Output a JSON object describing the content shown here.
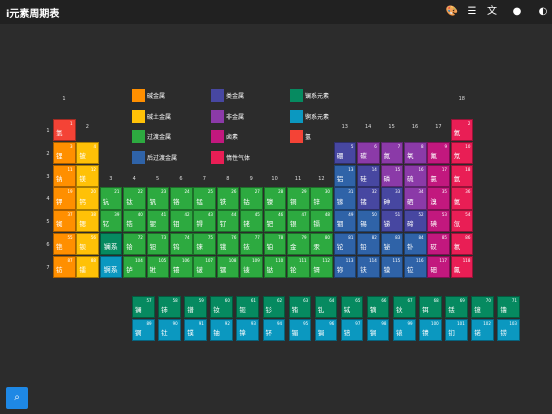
{
  "app": {
    "title": "i元素周期表"
  },
  "toolbar": [
    "palette-icon",
    "list-icon",
    "translate-icon",
    "drop-icon",
    "contrast-icon"
  ],
  "colors": {
    "alkali": "#ff8f00",
    "alkaline": "#ffc107",
    "transition": "#2daa40",
    "post": "#2f63a8",
    "metalloid": "#4747a1",
    "nonmetal": "#8b3aa8",
    "halogen": "#c2187e",
    "noble": "#e91e55",
    "lanth": "#068a60",
    "actin": "#0b98c0",
    "h": "#f44336"
  },
  "legend": [
    {
      "label": "碱金属",
      "cat": "alkali"
    },
    {
      "label": "碱土金属",
      "cat": "alkaline"
    },
    {
      "label": "过渡金属",
      "cat": "transition"
    },
    {
      "label": "后过渡金属",
      "cat": "post"
    },
    {
      "label": "类金属",
      "cat": "metalloid"
    },
    {
      "label": "非金属",
      "cat": "nonmetal"
    },
    {
      "label": "卤素",
      "cat": "halogen"
    },
    {
      "label": "惰性气体",
      "cat": "noble"
    },
    {
      "label": "镧系元素",
      "cat": "lanth"
    },
    {
      "label": "锕系元素",
      "cat": "actin"
    },
    {
      "label": "氢",
      "cat": "h"
    }
  ],
  "groups": [
    "1",
    "2",
    "3",
    "4",
    "5",
    "6",
    "7",
    "8",
    "9",
    "10",
    "11",
    "12",
    "13",
    "14",
    "15",
    "16",
    "17",
    "18"
  ],
  "periods": [
    "1",
    "2",
    "3",
    "4",
    "5",
    "6",
    "7"
  ],
  "elements": [
    {
      "n": 1,
      "s": "氢",
      "g": 1,
      "p": 1,
      "c": "h"
    },
    {
      "n": 2,
      "s": "氦",
      "g": 18,
      "p": 1,
      "c": "noble"
    },
    {
      "n": 3,
      "s": "锂",
      "g": 1,
      "p": 2,
      "c": "alkali"
    },
    {
      "n": 4,
      "s": "铍",
      "g": 2,
      "p": 2,
      "c": "alkaline"
    },
    {
      "n": 5,
      "s": "硼",
      "g": 13,
      "p": 2,
      "c": "metalloid"
    },
    {
      "n": 6,
      "s": "碳",
      "g": 14,
      "p": 2,
      "c": "nonmetal"
    },
    {
      "n": 7,
      "s": "氮",
      "g": 15,
      "p": 2,
      "c": "nonmetal"
    },
    {
      "n": 8,
      "s": "氧",
      "g": 16,
      "p": 2,
      "c": "nonmetal"
    },
    {
      "n": 9,
      "s": "氟",
      "g": 17,
      "p": 2,
      "c": "halogen"
    },
    {
      "n": 10,
      "s": "氖",
      "g": 18,
      "p": 2,
      "c": "noble"
    },
    {
      "n": 11,
      "s": "钠",
      "g": 1,
      "p": 3,
      "c": "alkali"
    },
    {
      "n": 12,
      "s": "镁",
      "g": 2,
      "p": 3,
      "c": "alkaline"
    },
    {
      "n": 13,
      "s": "铝",
      "g": 13,
      "p": 3,
      "c": "post"
    },
    {
      "n": 14,
      "s": "硅",
      "g": 14,
      "p": 3,
      "c": "metalloid"
    },
    {
      "n": 15,
      "s": "磷",
      "g": 15,
      "p": 3,
      "c": "nonmetal"
    },
    {
      "n": 16,
      "s": "硫",
      "g": 16,
      "p": 3,
      "c": "nonmetal"
    },
    {
      "n": 17,
      "s": "氯",
      "g": 17,
      "p": 3,
      "c": "halogen"
    },
    {
      "n": 18,
      "s": "氩",
      "g": 18,
      "p": 3,
      "c": "noble"
    },
    {
      "n": 19,
      "s": "钾",
      "g": 1,
      "p": 4,
      "c": "alkali"
    },
    {
      "n": 20,
      "s": "钙",
      "g": 2,
      "p": 4,
      "c": "alkaline"
    },
    {
      "n": 21,
      "s": "钪",
      "g": 3,
      "p": 4,
      "c": "transition"
    },
    {
      "n": 22,
      "s": "钛",
      "g": 4,
      "p": 4,
      "c": "transition"
    },
    {
      "n": 23,
      "s": "钒",
      "g": 5,
      "p": 4,
      "c": "transition"
    },
    {
      "n": 24,
      "s": "铬",
      "g": 6,
      "p": 4,
      "c": "transition"
    },
    {
      "n": 25,
      "s": "锰",
      "g": 7,
      "p": 4,
      "c": "transition"
    },
    {
      "n": 26,
      "s": "铁",
      "g": 8,
      "p": 4,
      "c": "transition"
    },
    {
      "n": 27,
      "s": "钴",
      "g": 9,
      "p": 4,
      "c": "transition"
    },
    {
      "n": 28,
      "s": "镍",
      "g": 10,
      "p": 4,
      "c": "transition"
    },
    {
      "n": 29,
      "s": "铜",
      "g": 11,
      "p": 4,
      "c": "transition"
    },
    {
      "n": 30,
      "s": "锌",
      "g": 12,
      "p": 4,
      "c": "transition"
    },
    {
      "n": 31,
      "s": "镓",
      "g": 13,
      "p": 4,
      "c": "post"
    },
    {
      "n": 32,
      "s": "锗",
      "g": 14,
      "p": 4,
      "c": "metalloid"
    },
    {
      "n": 33,
      "s": "砷",
      "g": 15,
      "p": 4,
      "c": "metalloid"
    },
    {
      "n": 34,
      "s": "硒",
      "g": 16,
      "p": 4,
      "c": "nonmetal"
    },
    {
      "n": 35,
      "s": "溴",
      "g": 17,
      "p": 4,
      "c": "halogen"
    },
    {
      "n": 36,
      "s": "氪",
      "g": 18,
      "p": 4,
      "c": "noble"
    },
    {
      "n": 37,
      "s": "铷",
      "g": 1,
      "p": 5,
      "c": "alkali"
    },
    {
      "n": 38,
      "s": "锶",
      "g": 2,
      "p": 5,
      "c": "alkaline"
    },
    {
      "n": 39,
      "s": "钇",
      "g": 3,
      "p": 5,
      "c": "transition"
    },
    {
      "n": 40,
      "s": "锆",
      "g": 4,
      "p": 5,
      "c": "transition"
    },
    {
      "n": 41,
      "s": "铌",
      "g": 5,
      "p": 5,
      "c": "transition"
    },
    {
      "n": 42,
      "s": "钼",
      "g": 6,
      "p": 5,
      "c": "transition"
    },
    {
      "n": 43,
      "s": "锝",
      "g": 7,
      "p": 5,
      "c": "transition"
    },
    {
      "n": 44,
      "s": "钌",
      "g": 8,
      "p": 5,
      "c": "transition"
    },
    {
      "n": 45,
      "s": "铑",
      "g": 9,
      "p": 5,
      "c": "transition"
    },
    {
      "n": 46,
      "s": "钯",
      "g": 10,
      "p": 5,
      "c": "transition"
    },
    {
      "n": 47,
      "s": "银",
      "g": 11,
      "p": 5,
      "c": "transition"
    },
    {
      "n": 48,
      "s": "镉",
      "g": 12,
      "p": 5,
      "c": "transition"
    },
    {
      "n": 49,
      "s": "铟",
      "g": 13,
      "p": 5,
      "c": "post"
    },
    {
      "n": 50,
      "s": "锡",
      "g": 14,
      "p": 5,
      "c": "post"
    },
    {
      "n": 51,
      "s": "锑",
      "g": 15,
      "p": 5,
      "c": "metalloid"
    },
    {
      "n": 52,
      "s": "碲",
      "g": 16,
      "p": 5,
      "c": "metalloid"
    },
    {
      "n": 53,
      "s": "碘",
      "g": 17,
      "p": 5,
      "c": "halogen"
    },
    {
      "n": 54,
      "s": "氙",
      "g": 18,
      "p": 5,
      "c": "noble"
    },
    {
      "n": 55,
      "s": "铯",
      "g": 1,
      "p": 6,
      "c": "alkali"
    },
    {
      "n": 56,
      "s": "钡",
      "g": 2,
      "p": 6,
      "c": "alkaline"
    },
    {
      "n": 72,
      "s": "铪",
      "g": 4,
      "p": 6,
      "c": "transition"
    },
    {
      "n": 73,
      "s": "钽",
      "g": 5,
      "p": 6,
      "c": "transition"
    },
    {
      "n": 74,
      "s": "钨",
      "g": 6,
      "p": 6,
      "c": "transition"
    },
    {
      "n": 75,
      "s": "铼",
      "g": 7,
      "p": 6,
      "c": "transition"
    },
    {
      "n": 76,
      "s": "锇",
      "g": 8,
      "p": 6,
      "c": "transition"
    },
    {
      "n": 77,
      "s": "铱",
      "g": 9,
      "p": 6,
      "c": "transition"
    },
    {
      "n": 78,
      "s": "铂",
      "g": 10,
      "p": 6,
      "c": "transition"
    },
    {
      "n": 79,
      "s": "金",
      "g": 11,
      "p": 6,
      "c": "transition"
    },
    {
      "n": 80,
      "s": "汞",
      "g": 12,
      "p": 6,
      "c": "transition"
    },
    {
      "n": 81,
      "s": "铊",
      "g": 13,
      "p": 6,
      "c": "post"
    },
    {
      "n": 82,
      "s": "铅",
      "g": 14,
      "p": 6,
      "c": "post"
    },
    {
      "n": 83,
      "s": "铋",
      "g": 15,
      "p": 6,
      "c": "post"
    },
    {
      "n": 84,
      "s": "钋",
      "g": 16,
      "p": 6,
      "c": "post"
    },
    {
      "n": 85,
      "s": "砹",
      "g": 17,
      "p": 6,
      "c": "halogen"
    },
    {
      "n": 86,
      "s": "氡",
      "g": 18,
      "p": 6,
      "c": "noble"
    },
    {
      "n": 87,
      "s": "钫",
      "g": 1,
      "p": 7,
      "c": "alkali"
    },
    {
      "n": 88,
      "s": "镭",
      "g": 2,
      "p": 7,
      "c": "alkaline"
    },
    {
      "n": 104,
      "s": "𬬻",
      "g": 4,
      "p": 7,
      "c": "transition"
    },
    {
      "n": 105,
      "s": "𬭊",
      "g": 5,
      "p": 7,
      "c": "transition"
    },
    {
      "n": 106,
      "s": "𬭳",
      "g": 6,
      "p": 7,
      "c": "transition"
    },
    {
      "n": 107,
      "s": "𬭛",
      "g": 7,
      "p": 7,
      "c": "transition"
    },
    {
      "n": 108,
      "s": "𬭶",
      "g": 8,
      "p": 7,
      "c": "transition"
    },
    {
      "n": 109,
      "s": "鿏",
      "g": 9,
      "p": 7,
      "c": "transition"
    },
    {
      "n": 110,
      "s": "𫟼",
      "g": 10,
      "p": 7,
      "c": "transition"
    },
    {
      "n": 111,
      "s": "𬬭",
      "g": 11,
      "p": 7,
      "c": "transition"
    },
    {
      "n": 112,
      "s": "鿔",
      "g": 12,
      "p": 7,
      "c": "transition"
    },
    {
      "n": 113,
      "s": "鿭",
      "g": 13,
      "p": 7,
      "c": "post"
    },
    {
      "n": 114,
      "s": "𫓧",
      "g": 14,
      "p": 7,
      "c": "post"
    },
    {
      "n": 115,
      "s": "镆",
      "g": 15,
      "p": 7,
      "c": "post"
    },
    {
      "n": 116,
      "s": "𫟷",
      "g": 16,
      "p": 7,
      "c": "post"
    },
    {
      "n": 117,
      "s": "鿬",
      "g": 17,
      "p": 7,
      "c": "halogen"
    },
    {
      "n": 118,
      "s": "鿫",
      "g": 18,
      "p": 7,
      "c": "noble"
    }
  ],
  "placeholders": [
    {
      "s": "镧系",
      "g": 3,
      "p": 6,
      "c": "lanth"
    },
    {
      "s": "锕系",
      "g": 3,
      "p": 7,
      "c": "actin"
    }
  ],
  "lanthanides": [
    {
      "n": 57,
      "s": "镧"
    },
    {
      "n": 58,
      "s": "铈"
    },
    {
      "n": 59,
      "s": "镨"
    },
    {
      "n": 60,
      "s": "钕"
    },
    {
      "n": 61,
      "s": "钷"
    },
    {
      "n": 62,
      "s": "钐"
    },
    {
      "n": 63,
      "s": "铕"
    },
    {
      "n": 64,
      "s": "钆"
    },
    {
      "n": 65,
      "s": "铽"
    },
    {
      "n": 66,
      "s": "镝"
    },
    {
      "n": 67,
      "s": "钬"
    },
    {
      "n": 68,
      "s": "铒"
    },
    {
      "n": 69,
      "s": "铥"
    },
    {
      "n": 70,
      "s": "镱"
    },
    {
      "n": 71,
      "s": "镥"
    }
  ],
  "actinides": [
    {
      "n": 89,
      "s": "锕"
    },
    {
      "n": 90,
      "s": "钍"
    },
    {
      "n": 91,
      "s": "镤"
    },
    {
      "n": 92,
      "s": "铀"
    },
    {
      "n": 93,
      "s": "镎"
    },
    {
      "n": 94,
      "s": "钚"
    },
    {
      "n": 95,
      "s": "镅"
    },
    {
      "n": 96,
      "s": "锔"
    },
    {
      "n": 97,
      "s": "锫"
    },
    {
      "n": 98,
      "s": "锎"
    },
    {
      "n": 99,
      "s": "锿"
    },
    {
      "n": 100,
      "s": "镄"
    },
    {
      "n": 101,
      "s": "钔"
    },
    {
      "n": 102,
      "s": "锘"
    },
    {
      "n": 103,
      "s": "铹"
    }
  ],
  "fab": {
    "icon": "search-icon"
  }
}
